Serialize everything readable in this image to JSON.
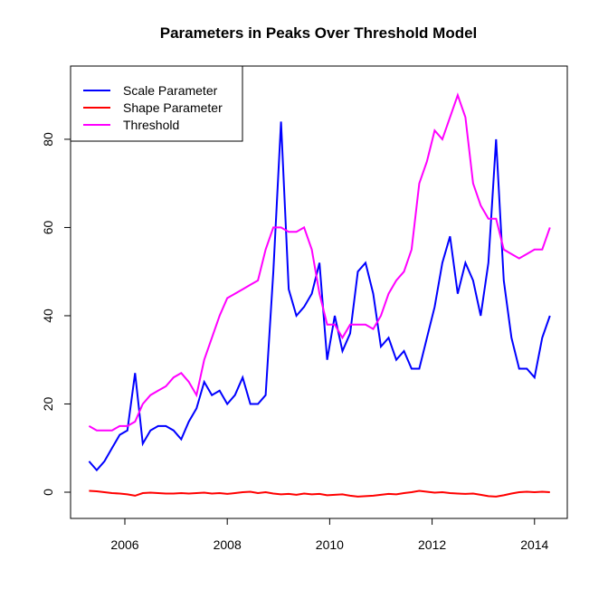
{
  "chart_data": {
    "type": "line",
    "title": "Parameters in Peaks Over Threshold Model",
    "x": [
      2005.3,
      2005.45,
      2005.6,
      2005.75,
      2005.9,
      2006.05,
      2006.2,
      2006.35,
      2006.5,
      2006.65,
      2006.8,
      2006.95,
      2007.1,
      2007.25,
      2007.4,
      2007.55,
      2007.7,
      2007.85,
      2008.0,
      2008.15,
      2008.3,
      2008.45,
      2008.6,
      2008.75,
      2008.9,
      2009.05,
      2009.2,
      2009.35,
      2009.5,
      2009.65,
      2009.8,
      2009.95,
      2010.1,
      2010.25,
      2010.4,
      2010.55,
      2010.7,
      2010.85,
      2011.0,
      2011.15,
      2011.3,
      2011.45,
      2011.6,
      2011.75,
      2011.9,
      2012.05,
      2012.2,
      2012.35,
      2012.5,
      2012.65,
      2012.8,
      2012.95,
      2013.1,
      2013.25,
      2013.4,
      2013.55,
      2013.7,
      2013.85,
      2014.0,
      2014.15,
      2014.3
    ],
    "series": [
      {
        "name": "Scale Parameter",
        "color": "#0000ff",
        "values": [
          7,
          5,
          7,
          10,
          13,
          14,
          27,
          11,
          14,
          15,
          15,
          14,
          12,
          16,
          19,
          25,
          22,
          23,
          20,
          22,
          26,
          20,
          20,
          22,
          50,
          84,
          46,
          40,
          42,
          45,
          52,
          30,
          40,
          32,
          36,
          50,
          52,
          45,
          33,
          35,
          30,
          32,
          28,
          28,
          35,
          42,
          52,
          58,
          45,
          52,
          48,
          40,
          52,
          80,
          48,
          35,
          28,
          28,
          26,
          35,
          40
        ]
      },
      {
        "name": "Shape Parameter",
        "color": "#ff0000",
        "values": [
          0.3,
          0.2,
          0,
          -0.2,
          -0.3,
          -0.5,
          -0.8,
          -0.2,
          -0.1,
          -0.2,
          -0.3,
          -0.3,
          -0.2,
          -0.3,
          -0.2,
          -0.1,
          -0.3,
          -0.2,
          -0.4,
          -0.2,
          0,
          0.1,
          -0.2,
          0,
          -0.3,
          -0.5,
          -0.4,
          -0.6,
          -0.3,
          -0.5,
          -0.4,
          -0.7,
          -0.6,
          -0.5,
          -0.8,
          -1,
          -0.9,
          -0.8,
          -0.6,
          -0.4,
          -0.5,
          -0.2,
          0,
          0.3,
          0.1,
          -0.1,
          0,
          -0.2,
          -0.3,
          -0.4,
          -0.3,
          -0.6,
          -0.9,
          -1,
          -0.7,
          -0.3,
          0,
          0.1,
          0,
          0.1,
          0
        ]
      },
      {
        "name": "Threshold",
        "color": "#ff00ff",
        "values": [
          15,
          14,
          14,
          14,
          15,
          15,
          16,
          20,
          22,
          23,
          24,
          26,
          27,
          25,
          22,
          30,
          35,
          40,
          44,
          45,
          46,
          47,
          48,
          55,
          60,
          60,
          59,
          59,
          60,
          55,
          45,
          38,
          38,
          35,
          38,
          38,
          38,
          37,
          40,
          45,
          48,
          50,
          55,
          70,
          75,
          82,
          80,
          85,
          90,
          85,
          70,
          65,
          62,
          62,
          55,
          54,
          53,
          54,
          55,
          55,
          60
        ]
      }
    ],
    "xlim": [
      2004.94,
      2014.64
    ],
    "ylim": [
      -5.95,
      96.6
    ],
    "xticks": [
      2006,
      2008,
      2010,
      2012,
      2014
    ],
    "yticks": [
      0,
      20,
      40,
      60,
      80
    ],
    "legend": "top-left"
  }
}
